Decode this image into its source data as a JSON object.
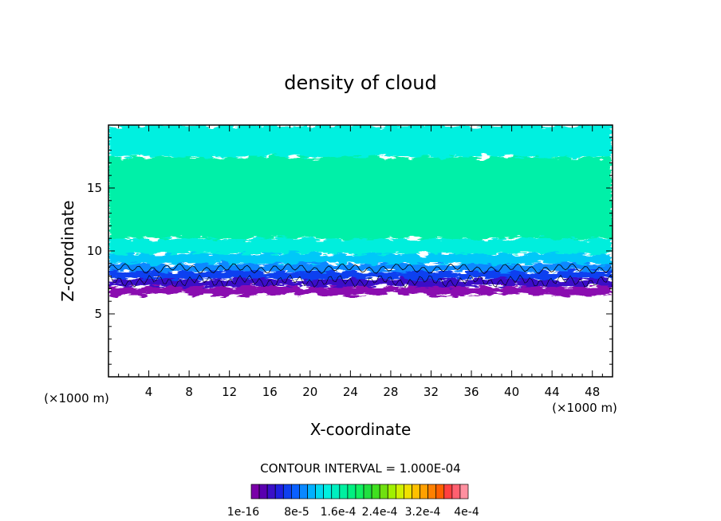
{
  "chart_data": {
    "type": "heatmap",
    "title": "density of cloud",
    "xlabel": "X-coordinate",
    "ylabel": "Z-coordinate",
    "x_unit_note": "(×1000 m)",
    "y_unit_note": "(×1000 m)",
    "xlim": [
      0,
      50
    ],
    "ylim": [
      0,
      20
    ],
    "xticks": [
      4,
      8,
      12,
      16,
      20,
      24,
      28,
      32,
      36,
      40,
      44,
      48
    ],
    "yticks": [
      5,
      10,
      15
    ],
    "contour_interval_text": "CONTOUR INTERVAL = 1.000E-04",
    "colorbar": {
      "labels": [
        "1e-16",
        "8e-5",
        "1.6e-4",
        "2.4e-4",
        "3.2e-4",
        "4e-4"
      ],
      "colors": [
        "#7a00a8",
        "#5a00b0",
        "#3a10c8",
        "#2020e0",
        "#1040f0",
        "#0a60ff",
        "#0a88ff",
        "#00b0ff",
        "#00d8f0",
        "#00f0e0",
        "#00f0c0",
        "#00f0a0",
        "#00f080",
        "#10f060",
        "#20e040",
        "#40e020",
        "#70e010",
        "#a0f000",
        "#d0f000",
        "#f0e000",
        "#ffc000",
        "#ffa000",
        "#ff8000",
        "#ff6000",
        "#ff4040",
        "#ff6070",
        "#ff90a0"
      ]
    },
    "bands": [
      {
        "z_from": 6.5,
        "z_to": 7.2,
        "value": "1e-16",
        "color": "#8a10b0"
      },
      {
        "z_from": 7.2,
        "z_to": 7.8,
        "value": "2e-5",
        "color": "#3a10c8"
      },
      {
        "z_from": 7.8,
        "z_to": 8.4,
        "value": "4e-5",
        "color": "#1040f0"
      },
      {
        "z_from": 8.4,
        "z_to": 9.0,
        "value": "6e-5",
        "color": "#0a88ff"
      },
      {
        "z_from": 9.0,
        "z_to": 9.8,
        "value": "8e-5",
        "color": "#00c8f8"
      },
      {
        "z_from": 9.8,
        "z_to": 11.0,
        "value": "1e-4",
        "color": "#00eedd"
      },
      {
        "z_from": 11.0,
        "z_to": 17.5,
        "value": "1.2e-4",
        "color": "#00f0a8"
      },
      {
        "z_from": 17.5,
        "z_to": 20.0,
        "value": "1e-4",
        "color": "#00f0e0"
      }
    ]
  }
}
